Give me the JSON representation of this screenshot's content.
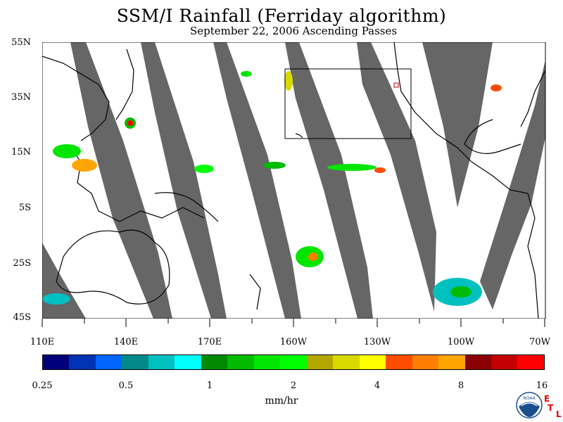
{
  "title": "SSM/I Rainfall (Ferriday algorithm)",
  "subtitle": "September 22, 2006  Ascending Passes",
  "map": {
    "lat_labels": [
      "55N",
      "35N",
      "15N",
      "5S",
      "25S",
      "45S"
    ],
    "lon_labels": [
      "110E",
      "140E",
      "170E",
      "160W",
      "130W",
      "100W",
      "70W"
    ],
    "swath_color": "#666666",
    "coastline_color": "#000000",
    "highlight_box": "rectangle outline over northeast Pacific"
  },
  "colorbar": {
    "colors": [
      "#00007a",
      "#0033b5",
      "#0066ff",
      "#008a8a",
      "#00c0c0",
      "#00ffff",
      "#008a00",
      "#00bb00",
      "#00e600",
      "#00ff00",
      "#b3a800",
      "#d9d900",
      "#ffff00",
      "#ff4d00",
      "#ff8000",
      "#ffa500",
      "#8b0000",
      "#c40000",
      "#ff0000"
    ],
    "tick_labels": [
      "0.25",
      "0.5",
      "1",
      "2",
      "4",
      "8",
      "16"
    ],
    "units": "mm/hr"
  },
  "logos": {
    "noaa": "NOAA",
    "etl": [
      "E",
      "T",
      "L"
    ]
  }
}
